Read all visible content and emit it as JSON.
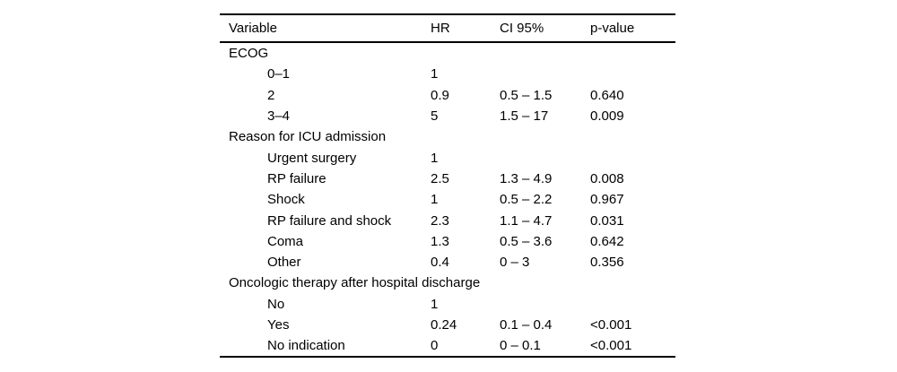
{
  "colors": {
    "text": "#000000",
    "rule": "#000000",
    "background": "#ffffff"
  },
  "table": {
    "columns": [
      "Variable",
      "HR",
      "CI 95%",
      "p-value"
    ],
    "rows": [
      {
        "label": "ECOG",
        "indent": false,
        "hr": "",
        "ci": "",
        "p": ""
      },
      {
        "label": "0–1",
        "indent": true,
        "hr": "1",
        "ci": "",
        "p": ""
      },
      {
        "label": "2",
        "indent": true,
        "hr": "0.9",
        "ci": "0.5 – 1.5",
        "p": "0.640"
      },
      {
        "label": "3–4",
        "indent": true,
        "hr": "5",
        "ci": "1.5 – 17",
        "p": "0.009"
      },
      {
        "label": "Reason for ICU admission",
        "indent": false,
        "hr": "",
        "ci": "",
        "p": ""
      },
      {
        "label": "Urgent surgery",
        "indent": true,
        "hr": "1",
        "ci": "",
        "p": ""
      },
      {
        "label": "RP failure",
        "indent": true,
        "hr": "2.5",
        "ci": "1.3 – 4.9",
        "p": "0.008"
      },
      {
        "label": "Shock",
        "indent": true,
        "hr": "1",
        "ci": "0.5 – 2.2",
        "p": "0.967"
      },
      {
        "label": "RP failure and shock",
        "indent": true,
        "hr": "2.3",
        "ci": "1.1 – 4.7",
        "p": "0.031"
      },
      {
        "label": "Coma",
        "indent": true,
        "hr": "1.3",
        "ci": "0.5 – 3.6",
        "p": "0.642"
      },
      {
        "label": "Other",
        "indent": true,
        "hr": "0.4",
        "ci": "0 – 3",
        "p": "0.356"
      },
      {
        "label": "Oncologic therapy after hospital discharge",
        "indent": false,
        "hr": "",
        "ci": "",
        "p": ""
      },
      {
        "label": "No",
        "indent": true,
        "hr": "1",
        "ci": "",
        "p": ""
      },
      {
        "label": "Yes",
        "indent": true,
        "hr": "0.24",
        "ci": "0.1 – 0.4",
        "p": "<0.001"
      },
      {
        "label": "No indication",
        "indent": true,
        "hr": "0",
        "ci": "0 – 0.1",
        "p": "<0.001"
      }
    ]
  }
}
